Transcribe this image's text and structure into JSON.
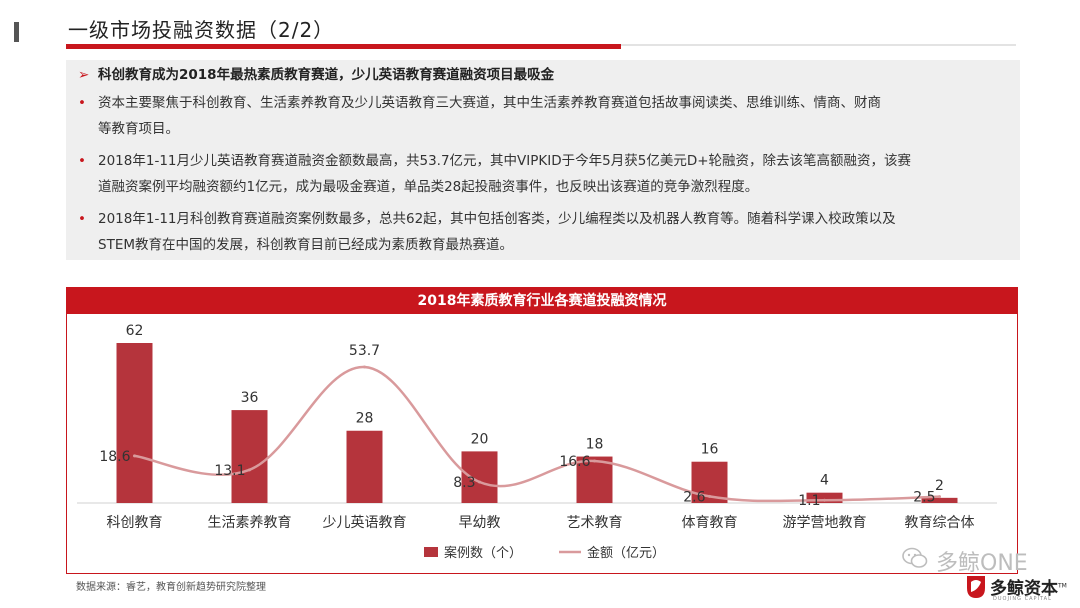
{
  "header": {
    "title": "一级市场投融资数据（2/2）"
  },
  "summary": {
    "headline_marker": "➢",
    "headline": "科创教育成为2018年最热素质教育赛道，少儿英语教育赛道融资项目最吸金",
    "bullet_marker": "•",
    "bullets": [
      {
        "line1": "资本主要聚焦于科创教育、生活素养教育及少儿英语教育三大赛道，其中生活素养教育赛道包括故事阅读类、思维训练、情商、财商",
        "line2": "等教育项目。"
      },
      {
        "line1": "2018年1-11月少儿英语教育赛道融资金额数最高，共53.7亿元，其中VIPKID于今年5月获5亿美元D+轮融资，除去该笔高额融资，该赛",
        "line2": "道融资案例平均融资额约1亿元，成为最吸金赛道，单品类28起投融资事件，也反映出该赛道的竞争激烈程度。"
      },
      {
        "line1": "2018年1-11月科创教育赛道融资案例数最多，总共62起，其中包括创客类，少儿编程类以及机器人教育等。随着科学课入校政策以及",
        "line2": "STEM教育在中国的发展，科创教育目前已经成为素质教育最热赛道。"
      }
    ]
  },
  "chart_data": {
    "type": "bar",
    "title": "2018年素质教育行业各赛道投融资情况",
    "categories": [
      "科创教育",
      "生活素养教育",
      "少儿英语教育",
      "早幼教",
      "艺术教育",
      "体育教育",
      "游学营地教育",
      "教育综合体"
    ],
    "series": [
      {
        "name": "案例数（个）",
        "type": "bar",
        "values": [
          62,
          36,
          28,
          20,
          18,
          16,
          4,
          2
        ],
        "labels": [
          "62",
          "36",
          "28",
          "20",
          "18",
          "16",
          "4",
          "2"
        ],
        "color": "#b5343c"
      },
      {
        "name": "金额（亿元）",
        "type": "line",
        "values": [
          18.6,
          13.1,
          53.7,
          8.3,
          16.6,
          2.6,
          1.1,
          2.5
        ],
        "labels": [
          "18.6",
          "13.1",
          "53.7",
          "8.3",
          "16.6",
          "2.6",
          "1.1",
          "2.5"
        ],
        "color": "#d99a9c"
      }
    ],
    "legend": "bottom",
    "grid": false
  },
  "footer": {
    "source": "数据来源：睿艺，教育创新趋势研究院整理"
  },
  "watermark": {
    "text": "多鲸ONE",
    "icon": "wechat-icon"
  },
  "logo": {
    "name": "多鲸资本",
    "tm": "TM",
    "sub": "DUOJING CAPITAL"
  },
  "colors": {
    "accent": "#c8161d",
    "bar": "#b5343c",
    "line": "#d99a9c",
    "panel_bg": "#efefef"
  }
}
